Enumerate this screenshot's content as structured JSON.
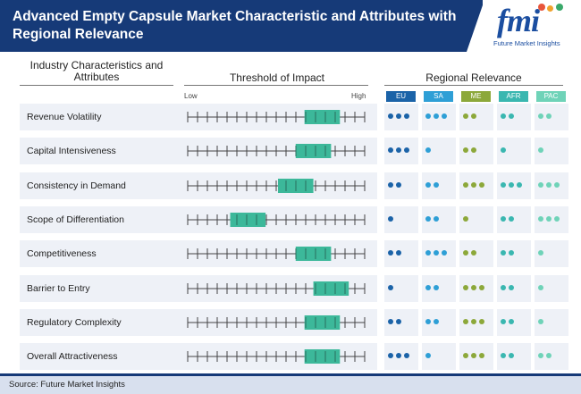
{
  "header": {
    "title": "Advanced Empty Capsule Market Characteristic and Attributes with Regional Relevance",
    "logo_text": "fmi",
    "logo_sub": "Future Market Insights"
  },
  "columns": {
    "characteristics": "Industry Characteristics and Attributes",
    "threshold": "Threshold of Impact",
    "regional": "Regional Relevance",
    "low": "Low",
    "high": "High"
  },
  "regions": [
    {
      "label": "EU",
      "color": "#1b63a8"
    },
    {
      "label": "SA",
      "color": "#2e9fd6"
    },
    {
      "label": "ME",
      "color": "#8ca83a"
    },
    {
      "label": "AFR",
      "color": "#3ab7b0"
    },
    {
      "label": "PAC",
      "color": "#6fd3b8"
    }
  ],
  "colors": {
    "header": "#163a78",
    "impact_bar": "#3cb89a",
    "row_bg": "#eef1f7"
  },
  "scale_ticks": 19,
  "rows": [
    {
      "label": "Revenue Volatility",
      "impact_start": 0.66,
      "impact_end": 0.86,
      "dots": [
        3,
        3,
        2,
        2,
        2
      ]
    },
    {
      "label": "Capital Intensiveness",
      "impact_start": 0.61,
      "impact_end": 0.81,
      "dots": [
        3,
        1,
        2,
        1,
        1
      ]
    },
    {
      "label": "Consistency in Demand",
      "impact_start": 0.51,
      "impact_end": 0.71,
      "dots": [
        2,
        2,
        3,
        3,
        3
      ]
    },
    {
      "label": "Scope of Differentiation",
      "impact_start": 0.24,
      "impact_end": 0.44,
      "dots": [
        1,
        2,
        1,
        2,
        3
      ]
    },
    {
      "label": "Competitiveness",
      "impact_start": 0.61,
      "impact_end": 0.81,
      "dots": [
        2,
        3,
        2,
        2,
        1
      ]
    },
    {
      "label": "Barrier to Entry",
      "impact_start": 0.71,
      "impact_end": 0.91,
      "dots": [
        1,
        2,
        3,
        2,
        1
      ]
    },
    {
      "label": "Regulatory Complexity",
      "impact_start": 0.66,
      "impact_end": 0.86,
      "dots": [
        2,
        2,
        3,
        2,
        1
      ]
    },
    {
      "label": "Overall Attractiveness",
      "impact_start": 0.66,
      "impact_end": 0.86,
      "dots": [
        3,
        1,
        3,
        2,
        2
      ]
    }
  ],
  "footer": {
    "source": "Source: Future Market Insights"
  }
}
